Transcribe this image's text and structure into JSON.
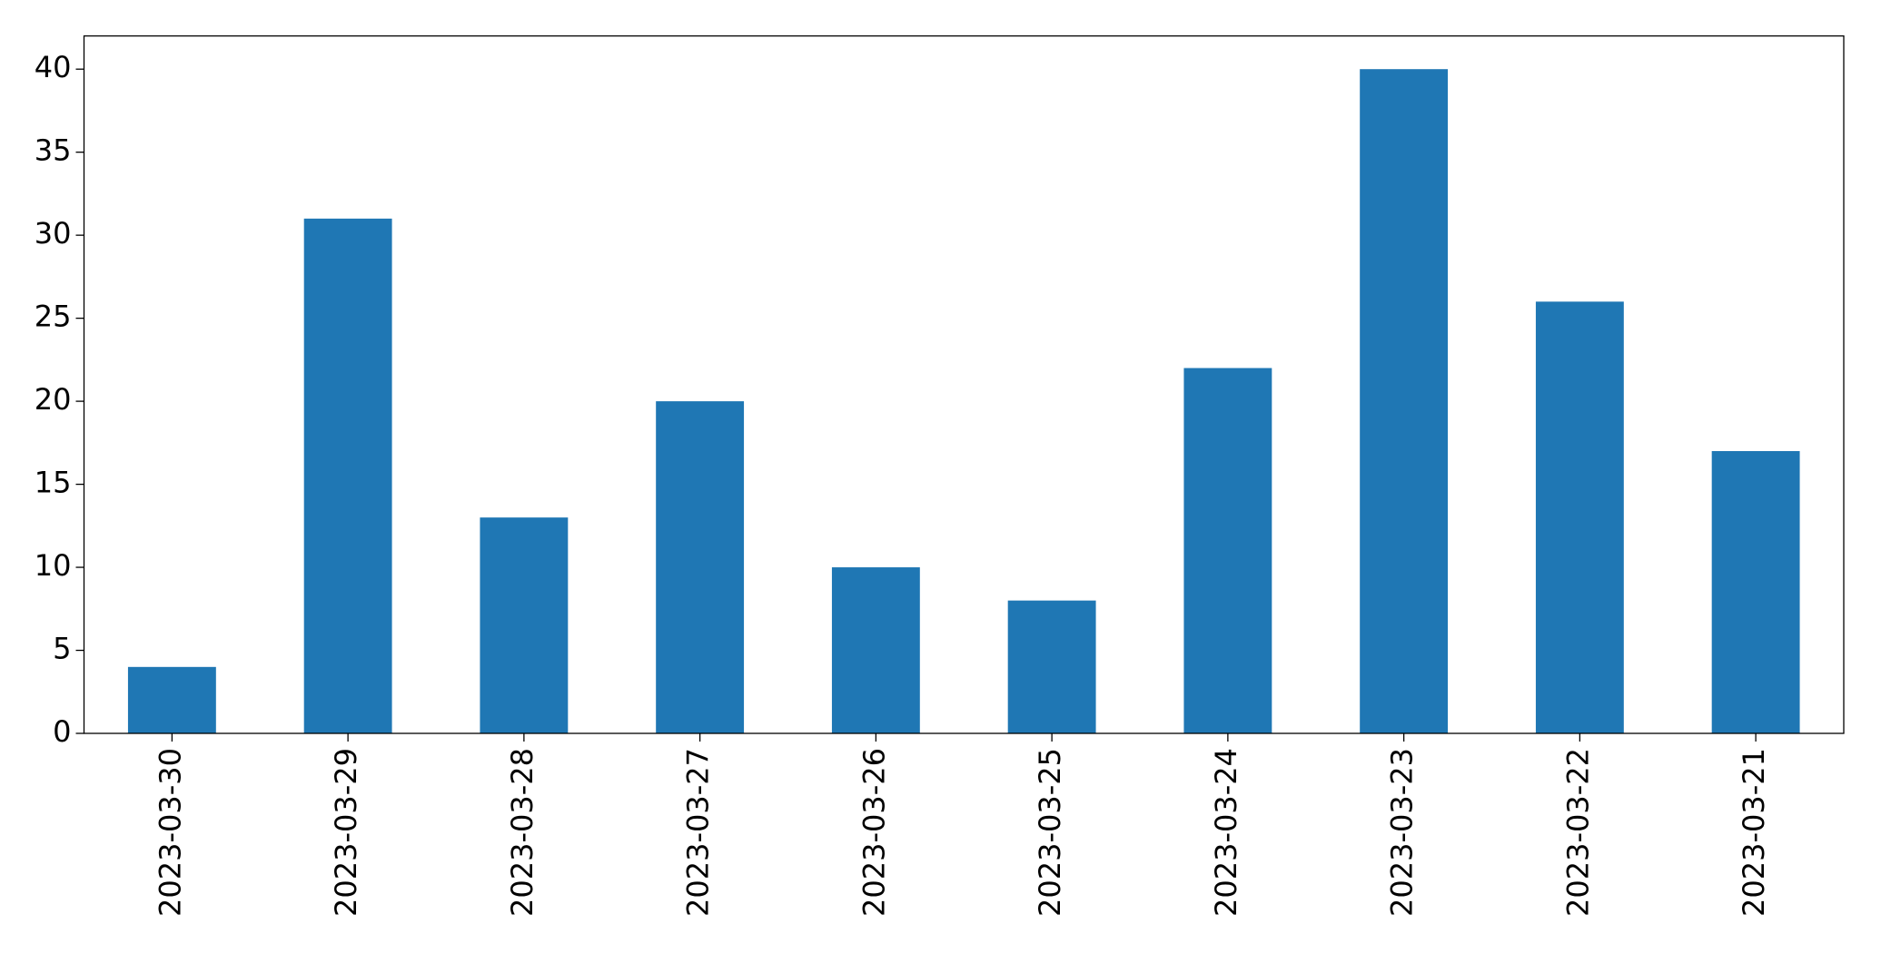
{
  "chart_data": {
    "type": "bar",
    "categories": [
      "2023-03-30",
      "2023-03-29",
      "2023-03-28",
      "2023-03-27",
      "2023-03-26",
      "2023-03-25",
      "2023-03-24",
      "2023-03-23",
      "2023-03-22",
      "2023-03-21"
    ],
    "values": [
      4,
      31,
      13,
      20,
      10,
      8,
      22,
      40,
      26,
      17
    ],
    "color": "#1f77b4",
    "ylim": [
      0,
      42
    ],
    "yticks": [
      0,
      5,
      10,
      15,
      20,
      25,
      30,
      35,
      40
    ],
    "grid": false
  }
}
